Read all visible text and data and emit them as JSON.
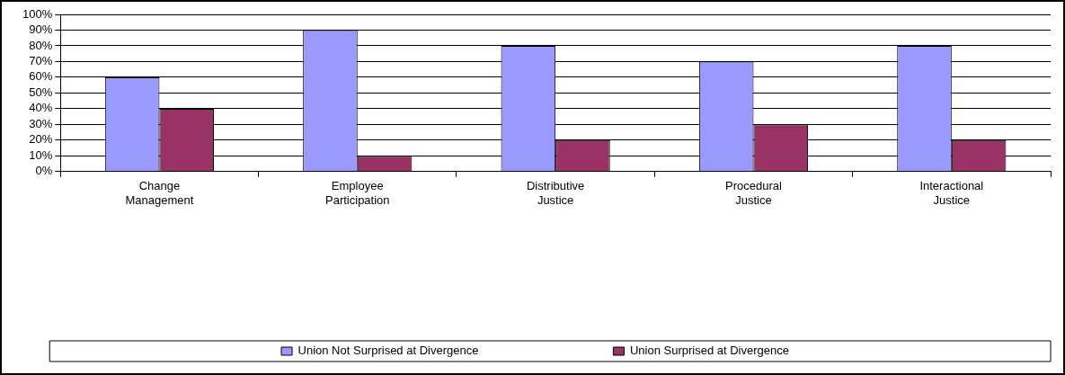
{
  "chart_data": {
    "type": "bar",
    "categories": [
      "Change Management",
      "Employee Participation",
      "Distributive Justice",
      "Procedural Justice",
      "Interactional Justice"
    ],
    "series": [
      {
        "name": "Union Not Surprised at Divergence",
        "color": "#9999ff",
        "values": [
          60,
          90,
          80,
          70,
          80
        ]
      },
      {
        "name": "Union Surprised at Divergence",
        "color": "#993366",
        "values": [
          40,
          10,
          20,
          30,
          20
        ]
      }
    ],
    "ylim": [
      0,
      100
    ],
    "yticks": [
      {
        "value": 0,
        "label": "0%"
      },
      {
        "value": 10,
        "label": "10%"
      },
      {
        "value": 20,
        "label": "20%"
      },
      {
        "value": 30,
        "label": "30%"
      },
      {
        "value": 40,
        "label": "40%"
      },
      {
        "value": 50,
        "label": "50%"
      },
      {
        "value": 60,
        "label": "60%"
      },
      {
        "value": 70,
        "label": "70%"
      },
      {
        "value": 80,
        "label": "80%"
      },
      {
        "value": 90,
        "label": "90%"
      },
      {
        "value": 100,
        "label": "100%"
      }
    ],
    "grid": "y",
    "legend": "bottom"
  }
}
